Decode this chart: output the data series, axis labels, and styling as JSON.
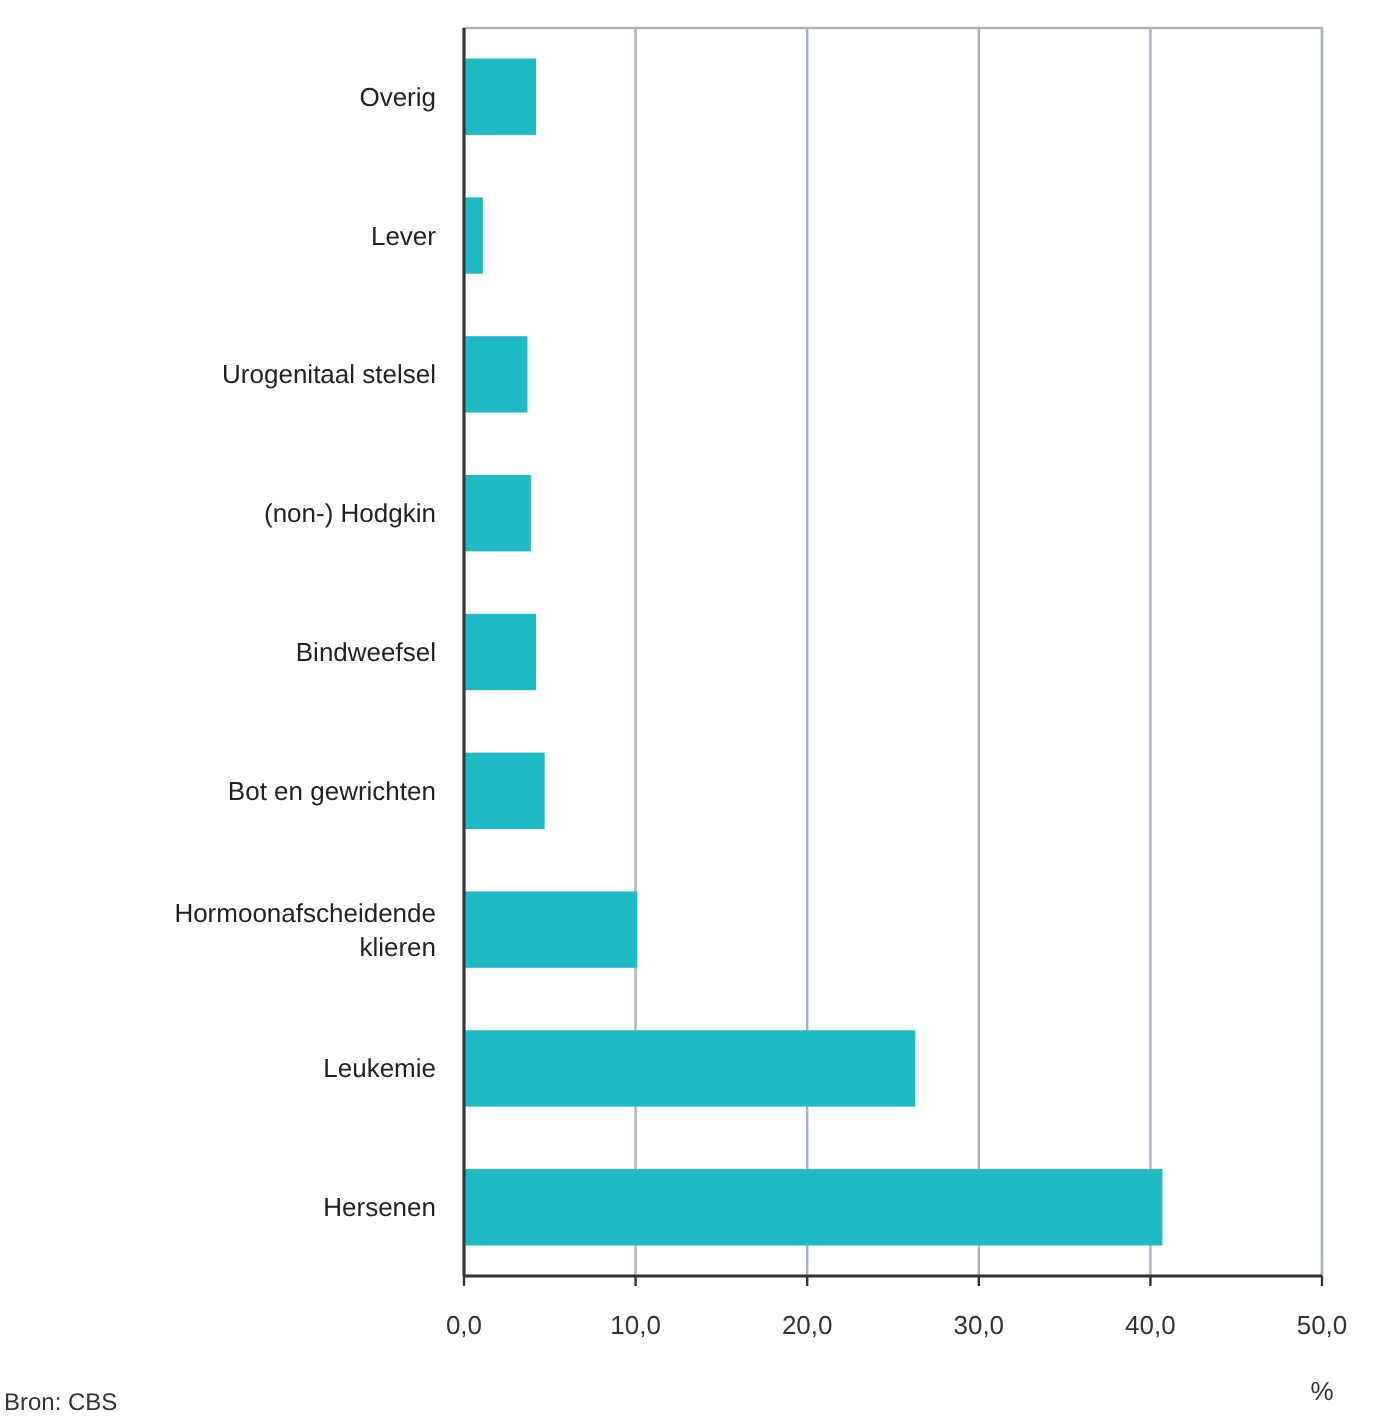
{
  "chart_data": {
    "type": "bar",
    "orientation": "horizontal",
    "xlabel": "%",
    "categories": [
      "Overig",
      "Lever",
      "Urogenitaal stelsel",
      "(non-) Hodgkin",
      "Bindweefsel",
      "Bot en gewrichten",
      "Hormoonafscheidende klieren",
      "Leukemie",
      "Hersenen"
    ],
    "values": [
      4.2,
      1.1,
      3.7,
      3.9,
      4.2,
      4.7,
      10.1,
      26.3,
      40.7
    ],
    "color": "#1fbbc5",
    "xlim": [
      0,
      50
    ],
    "xticks": [
      {
        "value": 0,
        "label": "0,0"
      },
      {
        "value": 10,
        "label": "10,0"
      },
      {
        "value": 20,
        "label": "20,0"
      },
      {
        "value": 30,
        "label": "30,0"
      },
      {
        "value": 40,
        "label": "40,0"
      },
      {
        "value": 50,
        "label": "50,0"
      }
    ],
    "grid": "x",
    "annotations": [
      "Bron: CBS"
    ]
  }
}
